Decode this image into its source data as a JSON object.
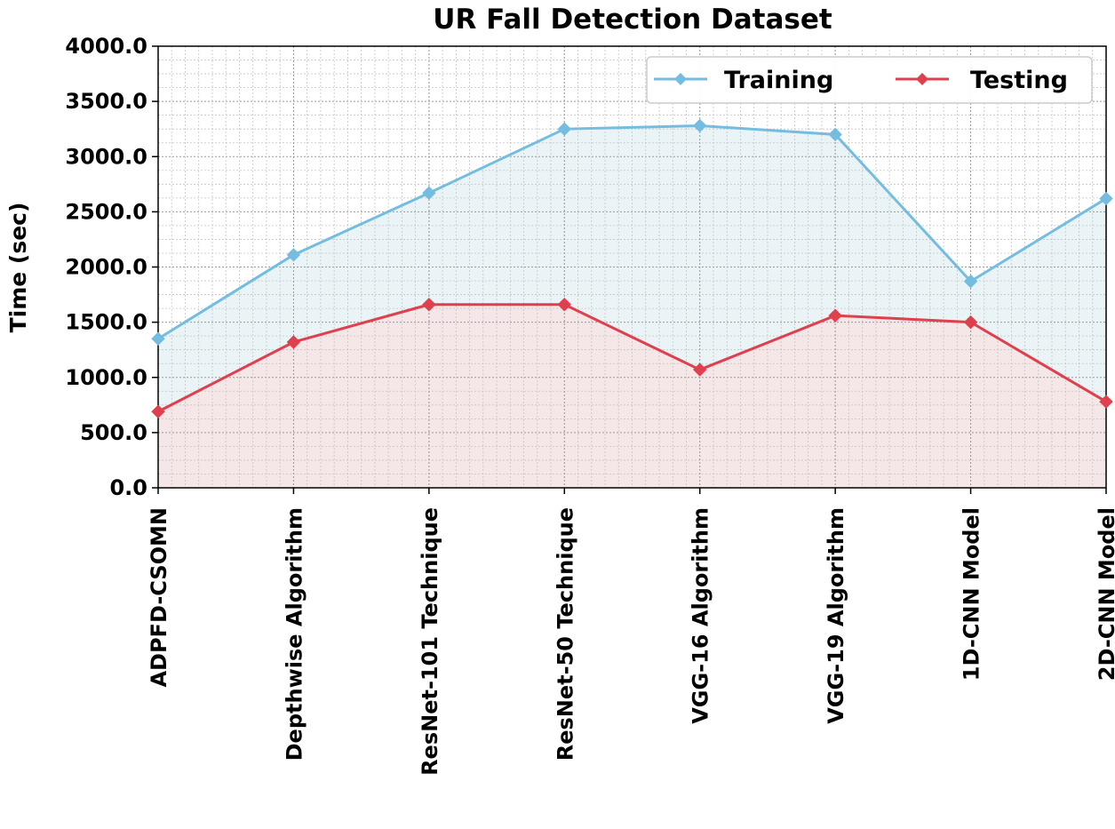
{
  "chart_data": {
    "type": "line",
    "title": "UR Fall Detection Dataset",
    "xlabel": "",
    "ylabel": "Time (sec)",
    "ylim": [
      0,
      4000
    ],
    "yticks": [
      "0.0",
      "500.0",
      "1000.0",
      "1500.0",
      "2000.0",
      "2500.0",
      "3000.0",
      "3500.0",
      "4000.0"
    ],
    "categories": [
      "ADPFD-CSOMN",
      "Depthwise Algorithm",
      "ResNet-101 Technique",
      "ResNet-50 Technique",
      "VGG-16 Algorithm",
      "VGG-19 Algorithm",
      "1D-CNN Model",
      "2D-CNN Model"
    ],
    "series": [
      {
        "name": "Training",
        "values": [
          1350,
          2110,
          2670,
          3250,
          3280,
          3200,
          1870,
          2620
        ],
        "color": "#74bde0",
        "fill": "#eaf4f7",
        "marker": "diamond"
      },
      {
        "name": "Testing",
        "values": [
          690,
          1320,
          1660,
          1660,
          1070,
          1560,
          1500,
          780
        ],
        "color": "#e0404e",
        "fill": "#f5e6e7",
        "marker": "diamond"
      }
    ],
    "grid": true,
    "minor_grid": true,
    "legend": "top-right"
  }
}
